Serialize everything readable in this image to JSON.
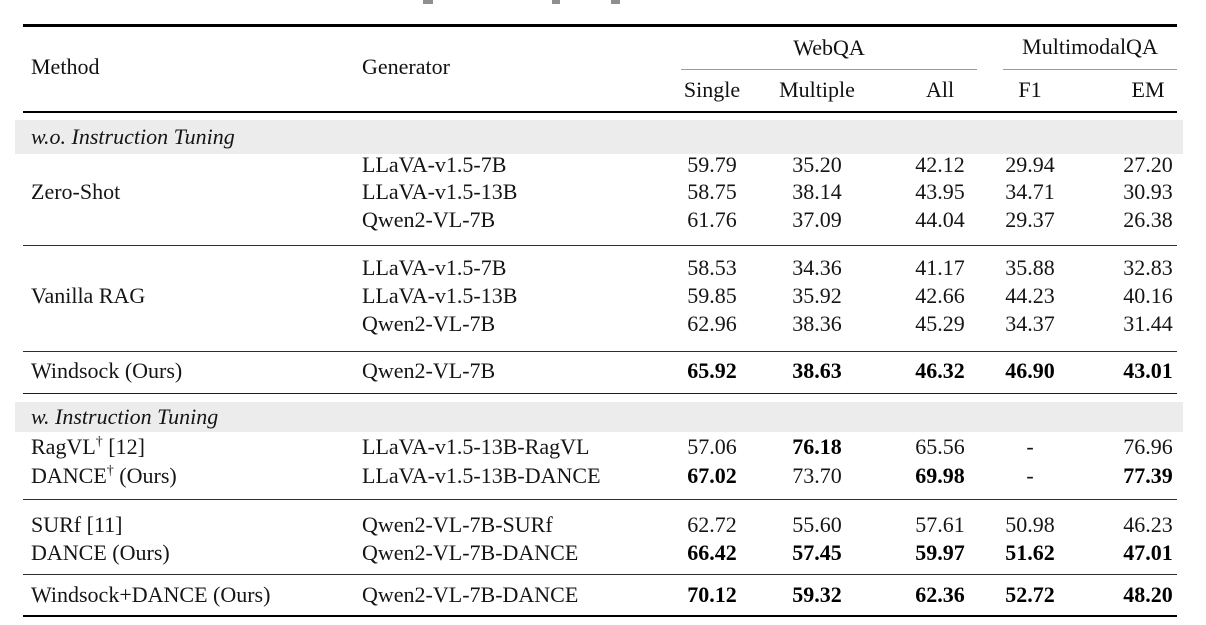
{
  "table": {
    "header": {
      "method": "Method",
      "generator": "Generator",
      "groups": [
        {
          "label": "WebQA",
          "cols": [
            "Single",
            "Multiple",
            "All"
          ]
        },
        {
          "label": "MultimodalQA",
          "cols": [
            "F1",
            "EM"
          ]
        }
      ]
    },
    "sections": [
      {
        "label": "w.o. Instruction Tuning",
        "rows": [
          {
            "gen": "LLaVA-v1.5-7B",
            "vals": [
              "59.79",
              "35.20",
              "42.12",
              "29.94",
              "27.20"
            ],
            "bold": [
              0,
              0,
              0,
              0,
              0
            ]
          },
          {
            "method": "Zero-Shot",
            "gen": "LLaVA-v1.5-13B",
            "vals": [
              "58.75",
              "38.14",
              "43.95",
              "34.71",
              "30.93"
            ],
            "bold": [
              0,
              0,
              0,
              0,
              0
            ]
          },
          {
            "gen": "Qwen2-VL-7B",
            "vals": [
              "61.76",
              "37.09",
              "44.04",
              "29.37",
              "26.38"
            ],
            "bold": [
              0,
              0,
              0,
              0,
              0
            ]
          },
          {
            "gen": "LLaVA-v1.5-7B",
            "vals": [
              "58.53",
              "34.36",
              "41.17",
              "35.88",
              "32.83"
            ],
            "bold": [
              0,
              0,
              0,
              0,
              0
            ]
          },
          {
            "method": "Vanilla RAG",
            "gen": "LLaVA-v1.5-13B",
            "vals": [
              "59.85",
              "35.92",
              "42.66",
              "44.23",
              "40.16"
            ],
            "bold": [
              0,
              0,
              0,
              0,
              0
            ]
          },
          {
            "gen": "Qwen2-VL-7B",
            "vals": [
              "62.96",
              "38.36",
              "45.29",
              "34.37",
              "31.44"
            ],
            "bold": [
              0,
              0,
              0,
              0,
              0
            ]
          },
          {
            "method": "Windsock (Ours)",
            "gen": "Qwen2-VL-7B",
            "vals": [
              "65.92",
              "38.63",
              "46.32",
              "46.90",
              "43.01"
            ],
            "bold": [
              1,
              1,
              1,
              1,
              1
            ]
          }
        ]
      },
      {
        "label": "w. Instruction Tuning",
        "rows": [
          {
            "method": "RagVL",
            "sup": "†",
            "method_rest": " [12]",
            "gen": "LLaVA-v1.5-13B-RagVL",
            "vals": [
              "57.06",
              "76.18",
              "65.56",
              "-",
              "76.96"
            ],
            "bold": [
              0,
              1,
              0,
              0,
              0
            ]
          },
          {
            "method": "DANCE",
            "sup": "†",
            "method_rest": " (Ours)",
            "gen": "LLaVA-v1.5-13B-DANCE",
            "vals": [
              "67.02",
              "73.70",
              "69.98",
              "-",
              "77.39"
            ],
            "bold": [
              1,
              0,
              1,
              0,
              1
            ]
          },
          {
            "method": "SURf [11]",
            "gen": "Qwen2-VL-7B-SURf",
            "vals": [
              "62.72",
              "55.60",
              "57.61",
              "50.98",
              "46.23"
            ],
            "bold": [
              0,
              0,
              0,
              0,
              0
            ]
          },
          {
            "method": "DANCE (Ours)",
            "gen": "Qwen2-VL-7B-DANCE",
            "vals": [
              "66.42",
              "57.45",
              "59.97",
              "51.62",
              "47.01"
            ],
            "bold": [
              1,
              1,
              1,
              1,
              1
            ]
          },
          {
            "method": "Windsock+DANCE (Ours)",
            "gen": "Qwen2-VL-7B-DANCE",
            "vals": [
              "70.12",
              "59.32",
              "62.36",
              "52.72",
              "48.20"
            ],
            "bold": [
              1,
              1,
              1,
              1,
              1
            ]
          }
        ]
      }
    ],
    "colors": {
      "band_bg": "#ececec",
      "rule": "#000000",
      "cmidrule": "#9a9a9a"
    }
  }
}
